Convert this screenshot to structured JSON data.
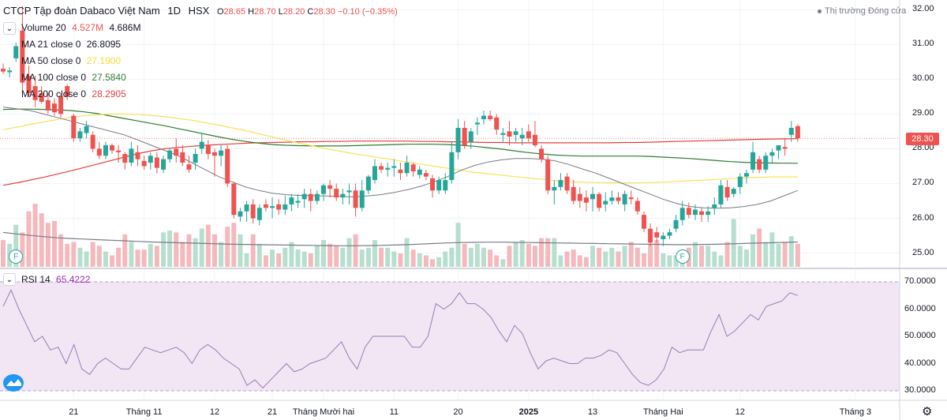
{
  "header": {
    "symbol_title": "CTCP Tập đoàn Dabaco Việt Nam",
    "interval": "1D",
    "exchange": "HSX",
    "open_label": "O",
    "open": "28.65",
    "high_label": "H",
    "high": "28.70",
    "low_label": "L",
    "low": "28.20",
    "close_label": "C",
    "close": "28.30",
    "change": "−0.10 (−0.35%)",
    "market_status": "Thị trường Đóng cửa"
  },
  "indicators": {
    "volume_label": "Volume 20",
    "volume_value": "4.527M",
    "volume_ma": "4.686M",
    "ma21_label": "MA 21 close 0",
    "ma21_value": "26.8095",
    "ma50_label": "MA 50 close 0",
    "ma50_value": "27.1900",
    "ma100_label": "MA 100 close 0",
    "ma100_value": "27.5840",
    "ma200_label": "MA 200 close 0",
    "ma200_value": "28.2905",
    "rsi_label": "RSI 14",
    "rsi_value": "65.4222"
  },
  "colors": {
    "up": "#26a69a",
    "down": "#ef5350",
    "vol_up": "#b7dfcf",
    "vol_down": "#f5b9bd",
    "ma21": "#787b86",
    "ma50": "#f5e35a",
    "ma100": "#2e7d32",
    "ma200": "#e5403b",
    "rsi": "#9c7ab3",
    "rsi_band": "#f2e6f5"
  },
  "price_axis": {
    "ticks": [
      "32.00",
      "31.00",
      "30.00",
      "29.00",
      "28.00",
      "27.00",
      "26.00",
      "25.00"
    ],
    "last_price_tag": "28.30"
  },
  "rsi_axis": {
    "ticks": [
      "70.0000",
      "60.0000",
      "50.0000",
      "40.0000",
      "30.0000"
    ]
  },
  "time_axis": [
    {
      "label": "21",
      "bar": 11
    },
    {
      "label": "Tháng 11",
      "bar": 22
    },
    {
      "label": "12",
      "bar": 33
    },
    {
      "label": "21",
      "bar": 42
    },
    {
      "label": "Tháng Mười hai",
      "bar": 50
    },
    {
      "label": "11",
      "bar": 61
    },
    {
      "label": "20",
      "bar": 71
    },
    {
      "label": "2025",
      "bar": 82
    },
    {
      "label": "13",
      "bar": 92
    },
    {
      "label": "Tháng Hai",
      "bar": 103
    },
    {
      "label": "12",
      "bar": 115
    },
    {
      "label": "Tháng 3",
      "bar": 133
    }
  ],
  "events": [
    {
      "label": "F",
      "bar": 2
    },
    {
      "label": "F",
      "bar": 106
    }
  ],
  "chart_data": {
    "type": "candlestick",
    "title": "CTCP Tập đoàn Dabaco Việt Nam · 1D · HSX",
    "price_range": [
      24.7,
      32.2
    ],
    "rsi_range": [
      26,
      74
    ],
    "candles": [
      [
        30.3,
        30.45,
        30.15,
        30.22,
        1.4
      ],
      [
        30.2,
        30.35,
        30.05,
        30.25,
        1.2
      ],
      [
        30.6,
        31.05,
        30.5,
        30.95,
        2.2
      ],
      [
        31.4,
        32.1,
        29.6,
        29.9,
        1.8
      ],
      [
        30.1,
        30.4,
        29.5,
        29.6,
        2.9
      ],
      [
        29.8,
        30.1,
        29.2,
        29.4,
        3.3
      ],
      [
        29.6,
        29.8,
        29.3,
        29.35,
        2.8
      ],
      [
        29.4,
        29.6,
        29.0,
        29.1,
        2.3
      ],
      [
        29.3,
        29.45,
        28.95,
        29.05,
        2.4
      ],
      [
        29.5,
        29.6,
        28.9,
        29.0,
        1.7
      ],
      [
        29.8,
        29.85,
        29.4,
        29.5,
        1.2
      ],
      [
        28.95,
        29.0,
        28.2,
        28.3,
        1.3
      ],
      [
        28.3,
        28.6,
        28.2,
        28.5,
        1.0
      ],
      [
        28.45,
        28.8,
        28.3,
        28.65,
        0.8
      ],
      [
        28.4,
        28.5,
        27.9,
        28.0,
        1.3
      ],
      [
        28.0,
        28.2,
        27.7,
        27.8,
        1.1
      ],
      [
        27.8,
        28.2,
        27.7,
        28.1,
        0.8
      ],
      [
        28.1,
        28.15,
        27.85,
        27.95,
        0.6
      ],
      [
        27.95,
        28.1,
        27.6,
        27.9,
        1.0
      ],
      [
        27.85,
        27.9,
        27.4,
        27.6,
        1.7
      ],
      [
        27.6,
        28.2,
        27.5,
        28.0,
        1.3
      ],
      [
        27.9,
        28.1,
        27.5,
        27.7,
        0.9
      ],
      [
        27.65,
        27.8,
        27.4,
        27.5,
        0.9
      ],
      [
        27.6,
        27.9,
        27.4,
        27.8,
        1.2
      ],
      [
        27.75,
        27.9,
        27.3,
        27.45,
        1.1
      ],
      [
        27.4,
        27.8,
        27.3,
        27.7,
        1.8
      ],
      [
        27.7,
        28.0,
        27.6,
        27.95,
        1.9
      ],
      [
        28.0,
        28.3,
        27.6,
        27.8,
        1.8
      ],
      [
        27.9,
        28.1,
        27.5,
        27.6,
        1.3
      ],
      [
        27.55,
        27.8,
        27.3,
        27.4,
        1.7
      ],
      [
        27.6,
        28.0,
        27.4,
        27.85,
        1.5
      ],
      [
        28.0,
        28.45,
        27.85,
        28.2,
        2.0
      ],
      [
        28.1,
        28.25,
        27.7,
        27.85,
        2.2
      ],
      [
        27.9,
        28.0,
        27.2,
        27.8,
        1.7
      ],
      [
        27.8,
        28.1,
        27.5,
        27.95,
        1.3
      ],
      [
        28.0,
        28.1,
        26.9,
        27.0,
        2.1
      ],
      [
        27.0,
        27.05,
        26.0,
        26.1,
        2.3
      ],
      [
        26.05,
        26.3,
        25.9,
        26.2,
        1.7
      ],
      [
        26.2,
        26.5,
        25.9,
        26.4,
        0.7
      ],
      [
        26.4,
        26.55,
        25.85,
        26.0,
        1.7
      ],
      [
        25.95,
        26.4,
        25.8,
        26.3,
        1.2
      ],
      [
        26.4,
        26.55,
        26.2,
        26.3,
        0.6
      ],
      [
        26.3,
        26.6,
        26.0,
        26.35,
        0.9
      ],
      [
        26.4,
        26.55,
        26.1,
        26.25,
        0.7
      ],
      [
        26.25,
        26.65,
        26.1,
        26.4,
        1.0
      ],
      [
        26.4,
        26.7,
        26.2,
        26.6,
        1.3
      ],
      [
        26.45,
        26.7,
        26.3,
        26.5,
        0.9
      ],
      [
        26.55,
        26.85,
        26.3,
        26.7,
        0.8
      ],
      [
        26.7,
        26.85,
        26.2,
        26.5,
        0.7
      ],
      [
        26.5,
        26.8,
        26.4,
        26.7,
        1.1
      ],
      [
        26.7,
        27.0,
        26.5,
        26.95,
        1.4
      ],
      [
        26.95,
        27.1,
        26.6,
        26.85,
        1.2
      ],
      [
        26.85,
        27.0,
        26.5,
        26.6,
        1.1
      ],
      [
        26.6,
        26.85,
        26.4,
        26.7,
        1.0
      ],
      [
        26.75,
        27.0,
        26.4,
        26.8,
        1.5
      ],
      [
        26.8,
        27.0,
        26.05,
        26.3,
        1.7
      ],
      [
        26.3,
        27.1,
        26.2,
        26.8,
        0.9
      ],
      [
        26.8,
        27.25,
        26.7,
        27.2,
        1.0
      ],
      [
        27.1,
        27.7,
        27.0,
        27.5,
        1.4
      ],
      [
        27.5,
        27.6,
        27.3,
        27.4,
        1.0
      ],
      [
        27.4,
        27.6,
        27.2,
        27.45,
        1.0
      ],
      [
        27.45,
        27.7,
        27.2,
        27.5,
        0.8
      ],
      [
        27.4,
        27.6,
        27.1,
        27.3,
        0.7
      ],
      [
        27.3,
        27.8,
        27.2,
        27.6,
        1.5
      ],
      [
        27.55,
        27.6,
        27.2,
        27.35,
        0.9
      ],
      [
        27.25,
        27.5,
        27.15,
        27.4,
        0.7
      ],
      [
        27.3,
        27.4,
        27.1,
        27.2,
        0.6
      ],
      [
        27.15,
        27.25,
        26.6,
        26.8,
        0.4
      ],
      [
        26.8,
        27.2,
        26.7,
        27.1,
        0.5
      ],
      [
        26.8,
        27.3,
        26.7,
        27.1,
        0.8
      ],
      [
        27.1,
        28.2,
        27.0,
        27.9,
        1.0
      ],
      [
        27.9,
        28.85,
        27.7,
        28.6,
        2.3
      ],
      [
        28.6,
        28.8,
        28.0,
        28.1,
        1.2
      ],
      [
        28.2,
        28.6,
        28.0,
        28.5,
        1.0
      ],
      [
        28.7,
        28.9,
        28.4,
        28.75,
        1.2
      ],
      [
        28.85,
        29.1,
        28.7,
        28.95,
        1.0
      ],
      [
        28.95,
        29.1,
        28.8,
        28.85,
        0.9
      ],
      [
        28.9,
        29.0,
        28.4,
        28.55,
        0.6
      ],
      [
        28.4,
        28.6,
        28.2,
        28.45,
        0.4
      ],
      [
        28.5,
        28.8,
        28.1,
        28.35,
        1.1
      ],
      [
        28.4,
        28.6,
        28.2,
        28.5,
        1.3
      ],
      [
        28.3,
        28.6,
        28.1,
        28.4,
        1.4
      ],
      [
        28.5,
        28.7,
        28.2,
        28.3,
        1.2
      ],
      [
        28.4,
        28.8,
        28.05,
        28.1,
        1.1
      ],
      [
        28.0,
        28.1,
        27.6,
        27.7,
        1.5
      ],
      [
        27.7,
        27.8,
        26.7,
        26.8,
        1.5
      ],
      [
        26.8,
        27.1,
        26.4,
        26.9,
        1.5
      ],
      [
        26.9,
        27.3,
        26.8,
        27.1,
        0.6
      ],
      [
        27.2,
        27.3,
        26.7,
        26.8,
        0.8
      ],
      [
        26.9,
        27.1,
        26.4,
        26.5,
        0.9
      ],
      [
        26.7,
        26.9,
        26.3,
        26.5,
        0.6
      ],
      [
        26.6,
        26.8,
        26.2,
        26.45,
        0.5
      ],
      [
        26.55,
        26.9,
        26.2,
        26.7,
        1.1
      ],
      [
        26.7,
        26.75,
        26.2,
        26.3,
        1.0
      ],
      [
        26.4,
        26.75,
        26.2,
        26.5,
        0.8
      ],
      [
        26.5,
        26.8,
        26.4,
        26.6,
        1.0
      ],
      [
        26.6,
        26.75,
        26.4,
        26.5,
        0.8
      ],
      [
        26.4,
        26.8,
        26.2,
        26.7,
        1.1
      ],
      [
        26.6,
        26.8,
        26.4,
        26.55,
        1.3
      ],
      [
        26.5,
        26.6,
        26.1,
        26.2,
        1.0
      ],
      [
        26.1,
        26.2,
        25.6,
        25.7,
        0.7
      ],
      [
        25.7,
        25.85,
        25.2,
        25.3,
        1.2
      ],
      [
        25.6,
        25.75,
        25.3,
        25.45,
        1.4
      ],
      [
        25.4,
        25.6,
        25.2,
        25.5,
        0.7
      ],
      [
        25.5,
        25.7,
        25.4,
        25.6,
        0.6
      ],
      [
        25.7,
        26.1,
        25.6,
        25.95,
        0.6
      ],
      [
        25.95,
        26.5,
        25.8,
        26.3,
        0.7
      ],
      [
        26.3,
        26.45,
        26.0,
        26.1,
        1.0
      ],
      [
        26.1,
        26.4,
        25.95,
        26.25,
        1.3
      ],
      [
        26.2,
        26.3,
        25.9,
        26.1,
        1.1
      ],
      [
        26.1,
        26.35,
        25.9,
        26.2,
        1.1
      ],
      [
        26.3,
        26.6,
        26.1,
        26.4,
        0.8
      ],
      [
        26.4,
        27.1,
        26.3,
        26.95,
        0.6
      ],
      [
        26.9,
        27.1,
        26.5,
        26.6,
        1.3
      ],
      [
        26.7,
        26.9,
        26.6,
        26.85,
        2.5
      ],
      [
        26.9,
        27.3,
        26.7,
        27.2,
        1.1
      ],
      [
        27.2,
        27.4,
        27.0,
        27.3,
        0.9
      ],
      [
        27.4,
        28.2,
        27.3,
        27.9,
        1.7
      ],
      [
        27.7,
        27.8,
        27.3,
        27.4,
        2.0
      ],
      [
        27.4,
        27.9,
        27.3,
        27.8,
        1.3
      ],
      [
        27.8,
        28.0,
        27.6,
        27.9,
        1.8
      ],
      [
        27.95,
        28.1,
        27.7,
        28.1,
        1.2
      ],
      [
        28.05,
        28.3,
        27.8,
        28.0,
        1.3
      ],
      [
        28.4,
        28.8,
        28.2,
        28.6,
        1.6
      ],
      [
        28.65,
        28.7,
        28.2,
        28.3,
        1.2
      ]
    ],
    "ma21": [
      29.2,
      29.15,
      29.1,
      29.0,
      28.9,
      28.8,
      28.7,
      28.6,
      28.5,
      28.4,
      28.25,
      28.1,
      27.95,
      27.8,
      27.6,
      27.4,
      27.2,
      27.05,
      26.9,
      26.8,
      26.72,
      26.68,
      26.66,
      26.65,
      26.64,
      26.63,
      26.62,
      26.64,
      26.68,
      26.74,
      26.82,
      26.92,
      27.05,
      27.2,
      27.38,
      27.52,
      27.62,
      27.68,
      27.72,
      27.72,
      27.7,
      27.65,
      27.55,
      27.42,
      27.3,
      27.15,
      27.0,
      26.85,
      26.7,
      26.55,
      26.43,
      26.34,
      26.3,
      26.29,
      26.3,
      26.34,
      26.4,
      26.5,
      26.65,
      26.8
    ],
    "ma50": [
      28.55,
      28.62,
      28.7,
      28.77,
      28.84,
      28.9,
      28.95,
      28.98,
      29.0,
      29.0,
      28.99,
      28.96,
      28.92,
      28.87,
      28.82,
      28.75,
      28.68,
      28.6,
      28.52,
      28.43,
      28.34,
      28.25,
      28.16,
      28.08,
      28.0,
      27.93,
      27.86,
      27.8,
      27.74,
      27.68,
      27.62,
      27.56,
      27.5,
      27.44,
      27.38,
      27.32,
      27.28,
      27.24,
      27.2,
      27.16,
      27.12,
      27.08,
      27.05,
      27.04,
      27.03,
      27.02,
      27.02,
      27.02,
      27.03,
      27.04,
      27.06,
      27.08,
      27.1,
      27.12,
      27.14,
      27.16,
      27.18,
      27.19,
      27.19,
      27.19
    ],
    "ma100": [
      29.13,
      29.14,
      29.14,
      29.13,
      29.12,
      29.1,
      29.06,
      29.01,
      28.94,
      28.87,
      28.8,
      28.73,
      28.66,
      28.58,
      28.5,
      28.42,
      28.34,
      28.27,
      28.21,
      28.16,
      28.12,
      28.1,
      28.09,
      28.08,
      28.08,
      28.08,
      28.09,
      28.1,
      28.11,
      28.12,
      28.13,
      28.13,
      28.13,
      28.12,
      28.1,
      28.07,
      28.03,
      27.99,
      27.94,
      27.89,
      27.85,
      27.82,
      27.8,
      27.79,
      27.79,
      27.79,
      27.79,
      27.79,
      27.78,
      27.76,
      27.74,
      27.72,
      27.69,
      27.66,
      27.63,
      27.61,
      27.6,
      27.59,
      27.585,
      27.584
    ],
    "ma200": [
      26.95,
      27.02,
      27.1,
      27.18,
      27.27,
      27.36,
      27.46,
      27.56,
      27.66,
      27.76,
      27.86,
      27.94,
      28.0,
      28.04,
      28.07,
      28.1,
      28.12,
      28.14,
      28.16,
      28.17,
      28.18,
      28.19,
      28.2,
      28.2,
      28.21,
      28.21,
      28.22,
      28.22,
      28.22,
      28.22,
      28.22,
      28.21,
      28.21,
      28.2,
      28.2,
      28.19,
      28.18,
      28.18,
      28.17,
      28.17,
      28.17,
      28.17,
      28.17,
      28.17,
      28.17,
      28.17,
      28.18,
      28.18,
      28.19,
      28.2,
      28.21,
      28.22,
      28.23,
      28.24,
      28.25,
      28.26,
      28.27,
      28.28,
      28.285,
      28.29
    ],
    "volume_ma": [
      1.8,
      1.72,
      1.64,
      1.58,
      1.52,
      1.48,
      1.45,
      1.42,
      1.39,
      1.36,
      1.33,
      1.3,
      1.28,
      1.26,
      1.24,
      1.22,
      1.2,
      1.18,
      1.17,
      1.16,
      1.15,
      1.14,
      1.13,
      1.12,
      1.11,
      1.1,
      1.1,
      1.11,
      1.12,
      1.14,
      1.16,
      1.19,
      1.22,
      1.25,
      1.27,
      1.28,
      1.29,
      1.29,
      1.28,
      1.27,
      1.26,
      1.25,
      1.24,
      1.23,
      1.22,
      1.21,
      1.2,
      1.19,
      1.18,
      1.17,
      1.16,
      1.16,
      1.17,
      1.18,
      1.2,
      1.22,
      1.24,
      1.26,
      1.28,
      1.3
    ],
    "rsi": [
      61,
      67,
      60,
      54,
      48,
      50,
      45,
      46,
      40,
      47,
      38,
      36,
      40,
      42,
      40,
      38,
      38,
      42,
      46,
      45,
      44,
      45,
      46,
      44,
      40,
      45,
      47,
      45,
      42,
      40,
      38,
      32,
      34,
      31,
      34,
      37,
      40,
      37,
      38,
      40,
      41,
      42,
      45,
      48,
      42,
      38,
      46,
      50,
      50,
      50,
      50,
      50,
      46,
      46,
      50,
      62,
      60,
      62,
      66,
      62,
      62,
      60,
      57,
      52,
      48,
      54,
      51,
      44,
      38,
      41,
      42,
      41,
      40,
      40,
      42,
      42,
      43,
      45,
      44,
      40,
      36,
      33,
      32,
      34,
      38,
      46,
      44,
      45,
      45,
      45,
      52,
      58,
      50,
      52,
      55,
      58,
      56,
      61,
      62,
      63,
      66,
      65
    ]
  }
}
